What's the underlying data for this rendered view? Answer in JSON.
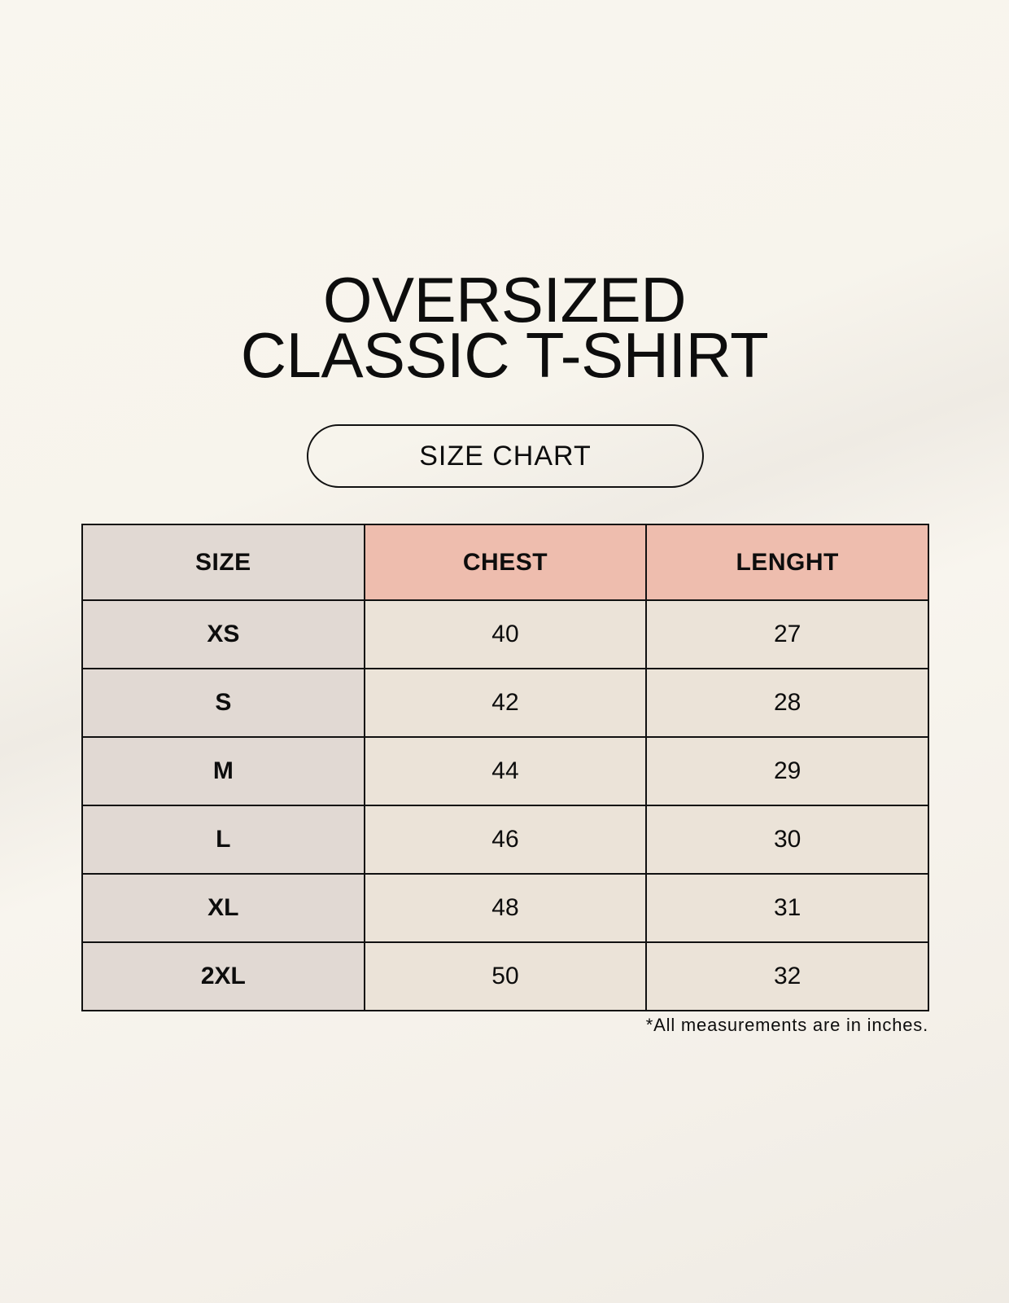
{
  "title": {
    "line1": "OVERSIZED",
    "line2": "CLASSIC T-SHIRT"
  },
  "badge": "SIZE CHART",
  "table": {
    "headers": [
      "SIZE",
      "CHEST",
      "LENGHT"
    ],
    "rows": [
      [
        "XS",
        "40",
        "27"
      ],
      [
        "S",
        "42",
        "28"
      ],
      [
        "M",
        "44",
        "29"
      ],
      [
        "L",
        "46",
        "30"
      ],
      [
        "XL",
        "48",
        "31"
      ],
      [
        "2XL",
        "50",
        "32"
      ]
    ]
  },
  "note": "*All measurements are in inches.",
  "colors": {
    "header_accent": "#eebdae",
    "size_column": "#e1d9d3",
    "cell": "#ebe3d8",
    "background": "#f8f5ee"
  }
}
